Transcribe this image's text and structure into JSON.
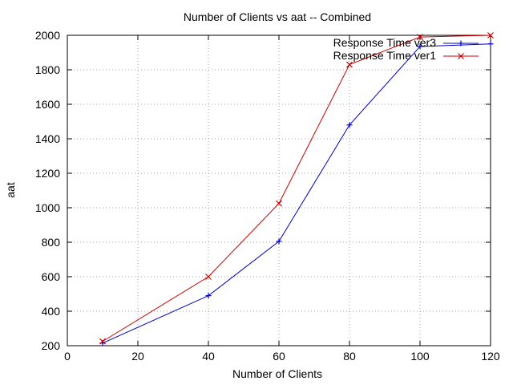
{
  "chart_data": {
    "type": "line",
    "title": "Number of Clients vs aat -- Combined",
    "xlabel": "Number of Clients",
    "ylabel": "aat",
    "xlim": [
      0,
      120
    ],
    "ylim": [
      200,
      2000
    ],
    "x_ticks": [
      "0",
      "20",
      "40",
      "60",
      "80",
      "100",
      "120"
    ],
    "y_ticks": [
      "200",
      "400",
      "600",
      "800",
      "1000",
      "1200",
      "1400",
      "1600",
      "1800",
      "2000"
    ],
    "grid": true,
    "legend_position": "top-right",
    "series": [
      {
        "name": "Response Time ver3",
        "color": "#0000cc",
        "marker": "plus",
        "x": [
          10,
          40,
          60,
          80,
          100,
          120
        ],
        "y": [
          215,
          490,
          805,
          1480,
          1935,
          1950
        ]
      },
      {
        "name": "Response Time ver1",
        "color": "#cc0000",
        "marker": "cross",
        "x": [
          10,
          40,
          60,
          80,
          100,
          120
        ],
        "y": [
          225,
          600,
          1025,
          1830,
          1990,
          2000
        ]
      }
    ]
  }
}
